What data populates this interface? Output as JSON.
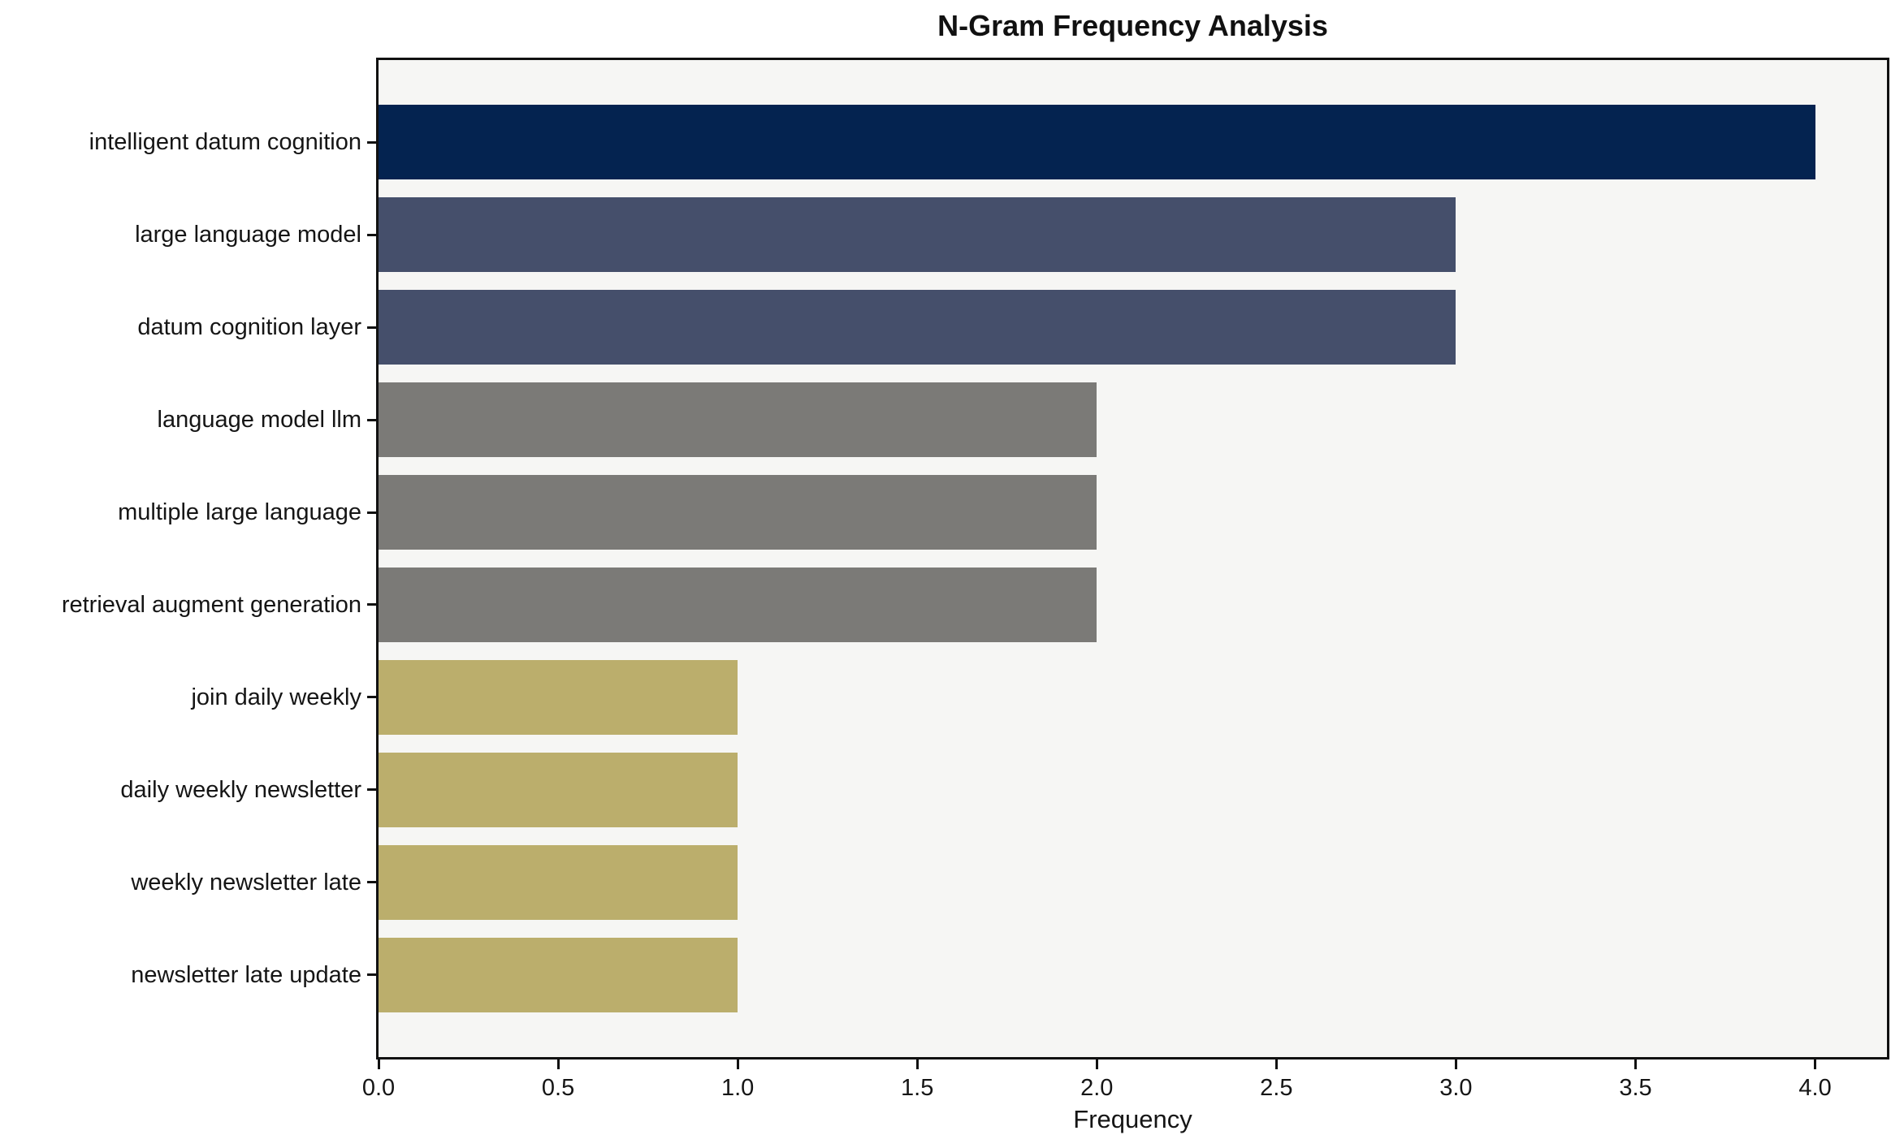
{
  "chart_data": {
    "type": "bar",
    "orientation": "horizontal",
    "title": "N-Gram Frequency Analysis",
    "xlabel": "Frequency",
    "ylabel": "",
    "categories": [
      "intelligent datum cognition",
      "large language model",
      "datum cognition layer",
      "language model llm",
      "multiple large language",
      "retrieval augment generation",
      "join daily weekly",
      "daily weekly newsletter",
      "weekly newsletter late",
      "newsletter late update"
    ],
    "values": [
      4,
      3,
      3,
      2,
      2,
      2,
      1,
      1,
      1,
      1
    ],
    "bar_colors": [
      "#042350",
      "#454f6b",
      "#454f6b",
      "#7b7a77",
      "#7b7a77",
      "#7b7a77",
      "#bbae6c",
      "#bbae6c",
      "#bbae6c",
      "#bbae6c"
    ],
    "x_ticks": [
      0.0,
      0.5,
      1.0,
      1.5,
      2.0,
      2.5,
      3.0,
      3.5,
      4.0
    ],
    "x_tick_labels": [
      "0.0",
      "0.5",
      "1.0",
      "1.5",
      "2.0",
      "2.5",
      "3.0",
      "3.5",
      "4.0"
    ],
    "xlim": [
      0,
      4.2
    ],
    "grid": false,
    "legend_position": "none",
    "colors": {
      "plot_background": "#f6f6f4",
      "figure_background": "#ffffff",
      "spine": "#111111",
      "text": "#151515"
    }
  }
}
